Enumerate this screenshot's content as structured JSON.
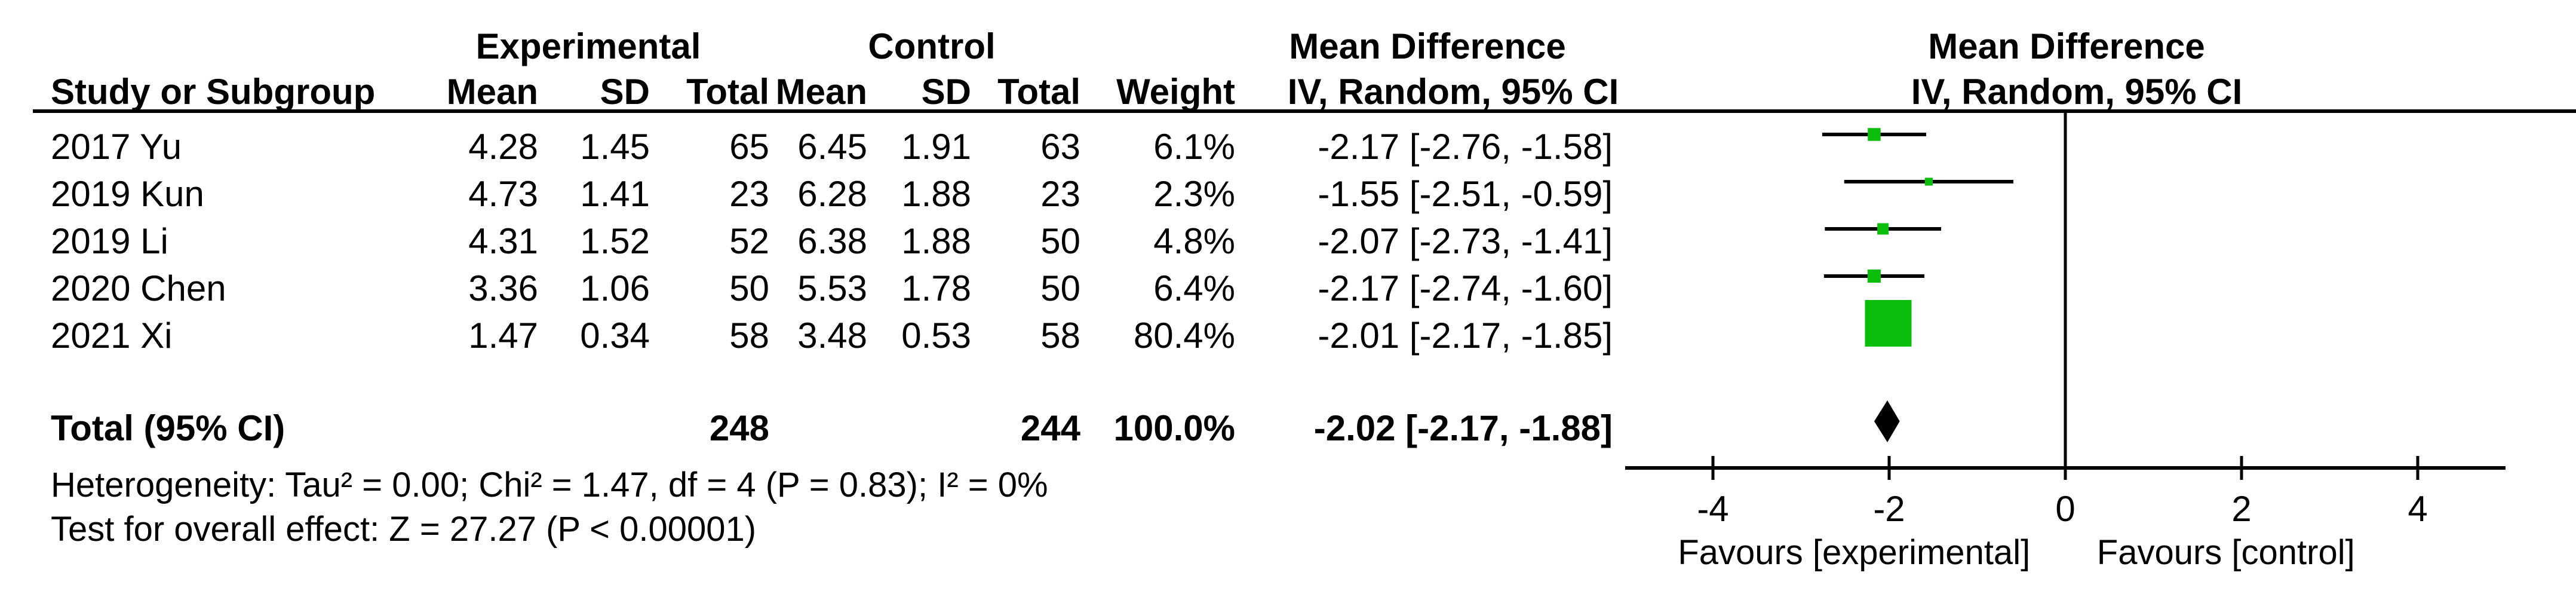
{
  "table": {
    "header_groups": {
      "experimental": "Experimental",
      "control": "Control",
      "md_text_col": "Mean Difference",
      "md_plot_col": "Mean Difference"
    },
    "header_cols": {
      "study": "Study or Subgroup",
      "exp_mean": "Mean",
      "exp_sd": "SD",
      "exp_total": "Total",
      "ctrl_mean": "Mean",
      "ctrl_sd": "SD",
      "ctrl_total": "Total",
      "weight": "Weight",
      "iv_text_col": "IV, Random, 95% CI",
      "iv_plot_col": "IV, Random, 95% CI"
    },
    "studies": [
      {
        "label": "2017 Yu",
        "exp_mean": "4.28",
        "exp_sd": "1.45",
        "exp_total": "65",
        "ctrl_mean": "6.45",
        "ctrl_sd": "1.91",
        "ctrl_total": "63",
        "weight": "6.1%",
        "ci": "-2.17 [-2.76, -1.58]"
      },
      {
        "label": "2019 Kun",
        "exp_mean": "4.73",
        "exp_sd": "1.41",
        "exp_total": "23",
        "ctrl_mean": "6.28",
        "ctrl_sd": "1.88",
        "ctrl_total": "23",
        "weight": "2.3%",
        "ci": "-1.55 [-2.51, -0.59]"
      },
      {
        "label": "2019 Li",
        "exp_mean": "4.31",
        "exp_sd": "1.52",
        "exp_total": "52",
        "ctrl_mean": "6.38",
        "ctrl_sd": "1.88",
        "ctrl_total": "50",
        "weight": "4.8%",
        "ci": "-2.07 [-2.73, -1.41]"
      },
      {
        "label": "2020 Chen",
        "exp_mean": "3.36",
        "exp_sd": "1.06",
        "exp_total": "50",
        "ctrl_mean": "5.53",
        "ctrl_sd": "1.78",
        "ctrl_total": "50",
        "weight": "6.4%",
        "ci": "-2.17 [-2.74, -1.60]"
      },
      {
        "label": "2021 Xi",
        "exp_mean": "1.47",
        "exp_sd": "0.34",
        "exp_total": "58",
        "ctrl_mean": "3.48",
        "ctrl_sd": "0.53",
        "ctrl_total": "58",
        "weight": "80.4%",
        "ci": "-2.01 [-2.17, -1.85]"
      }
    ],
    "total_row": {
      "label": "Total (95% CI)",
      "exp_total": "248",
      "ctrl_total": "244",
      "weight": "100.0%",
      "ci": "-2.02 [-2.17, -1.88]"
    },
    "footnotes": {
      "heterogeneity": "Heterogeneity: Tau² = 0.00; Chi² = 1.47, df = 4 (P = 0.83); I² = 0%",
      "overall_effect": "Test for overall effect: Z = 27.27 (P < 0.00001)"
    }
  },
  "chart_data": {
    "type": "forest",
    "effect_measure": "Mean Difference",
    "method": "IV, Random, 95% CI",
    "x_axis": {
      "ticks": [
        -4,
        -2,
        0,
        2,
        4
      ],
      "xlim": [
        -5,
        5
      ],
      "left_label": "Favours [experimental]",
      "right_label": "Favours [control]"
    },
    "studies": [
      {
        "label": "2017 Yu",
        "md": -2.17,
        "ci_low": -2.76,
        "ci_high": -1.58,
        "weight_pct": 6.1
      },
      {
        "label": "2019 Kun",
        "md": -1.55,
        "ci_low": -2.51,
        "ci_high": -0.59,
        "weight_pct": 2.3
      },
      {
        "label": "2019 Li",
        "md": -2.07,
        "ci_low": -2.73,
        "ci_high": -1.41,
        "weight_pct": 4.8
      },
      {
        "label": "2020 Chen",
        "md": -2.17,
        "ci_low": -2.74,
        "ci_high": -1.6,
        "weight_pct": 6.4
      },
      {
        "label": "2021 Xi",
        "md": -2.01,
        "ci_low": -2.17,
        "ci_high": -1.85,
        "weight_pct": 80.4
      }
    ],
    "total": {
      "md": -2.02,
      "ci_low": -2.17,
      "ci_high": -1.88
    },
    "colors": {
      "marker": "#0CBE0C",
      "ci_line": "#000000",
      "diamond": "#000000",
      "axis": "#000000"
    }
  }
}
